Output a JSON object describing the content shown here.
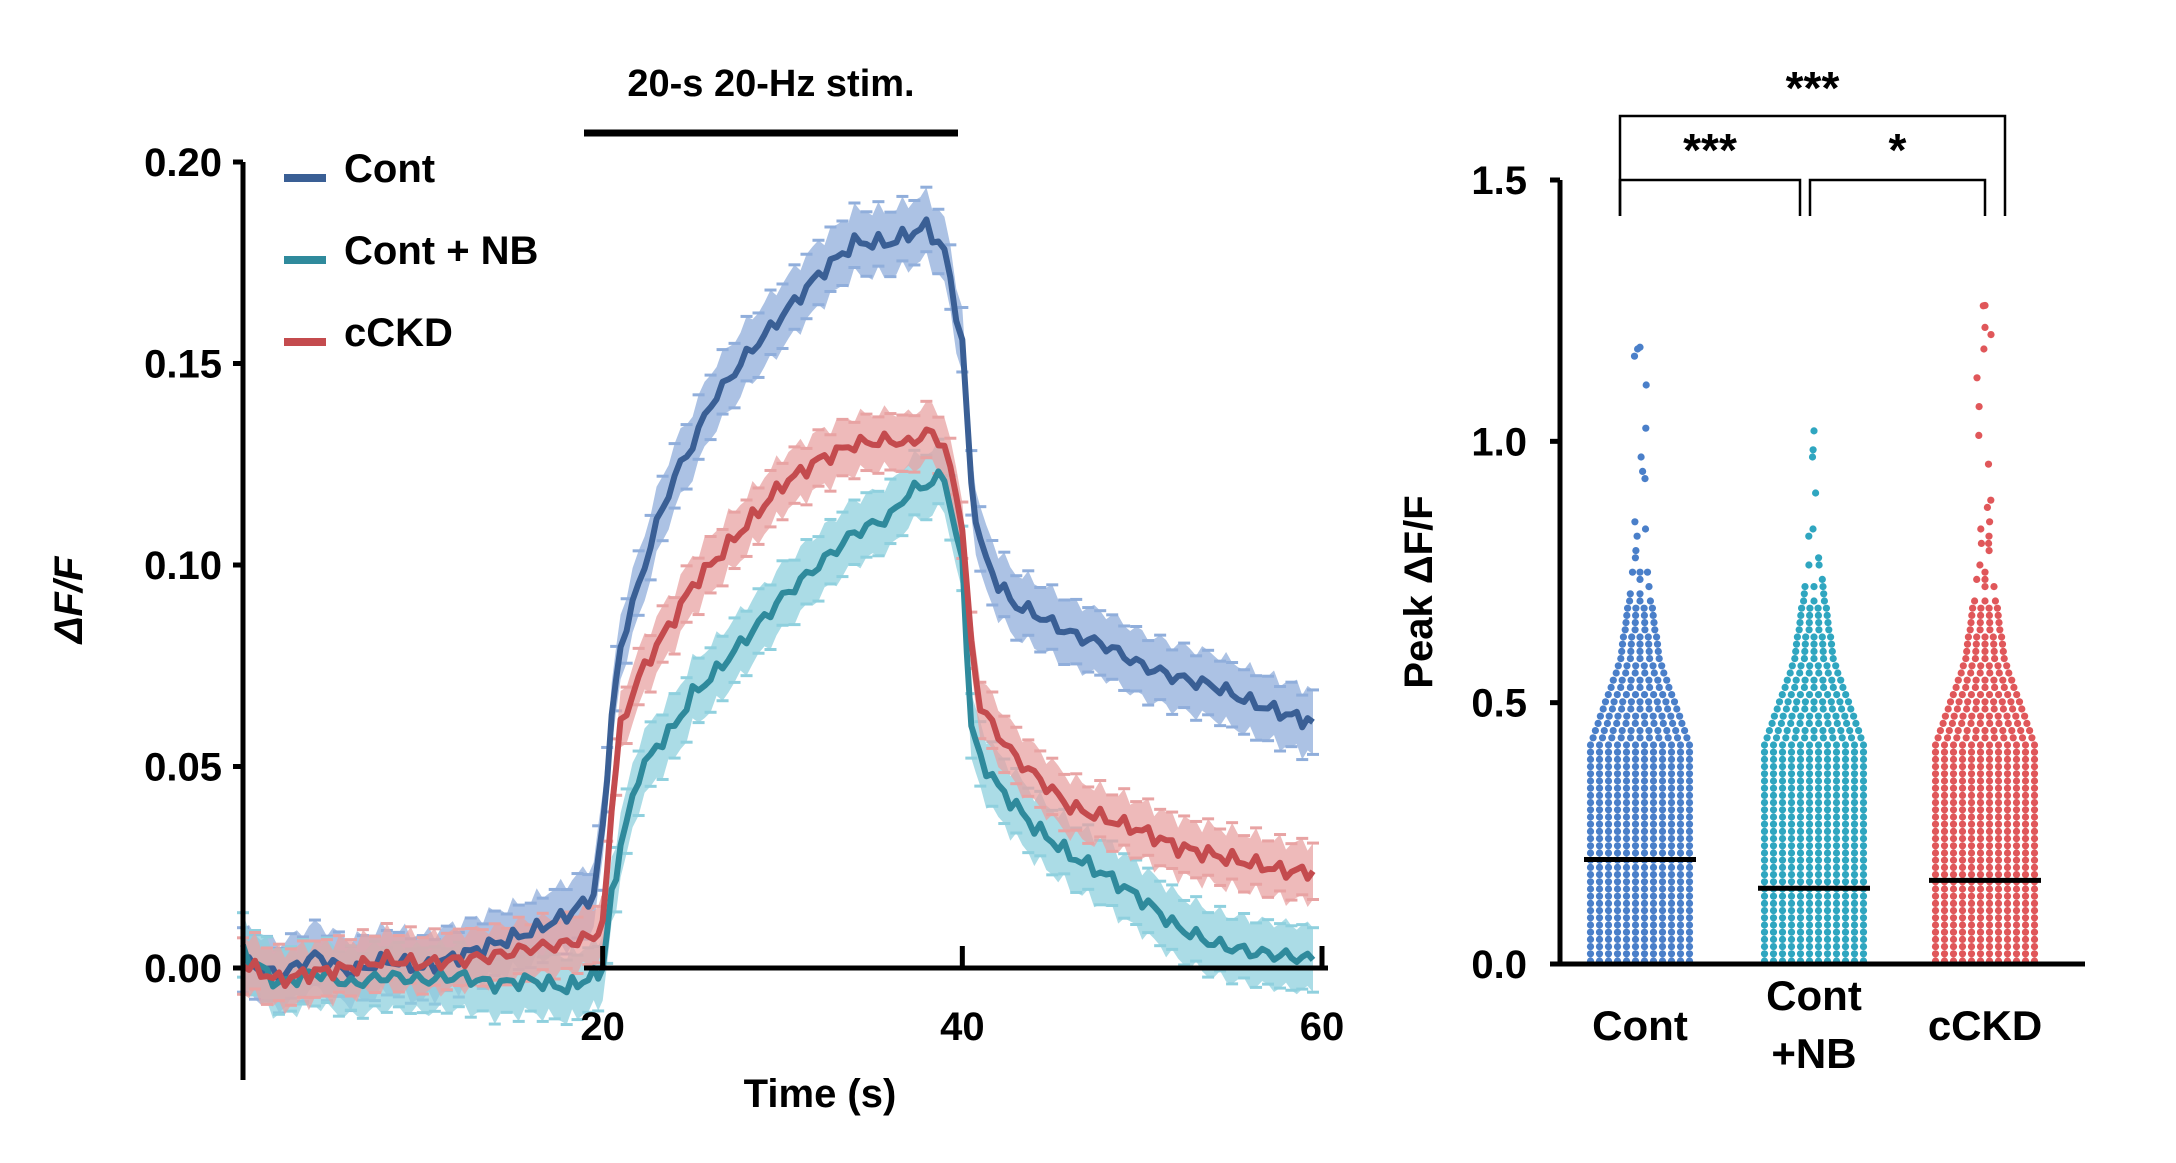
{
  "colors": {
    "cont": "#3a5f95",
    "cont_band": "#90aedb",
    "contnb": "#2f8a9c",
    "contnb_band": "#8fd0de",
    "cckd": "#c44b4e",
    "cckd_band": "#e8a3a3",
    "cont_dots": "#4a7fc9",
    "contnb_dots": "#2fa6c0",
    "cckd_dots": "#e0575a"
  },
  "chart_data": [
    {
      "type": "line",
      "title": "",
      "stim_label": "20-s 20-Hz stim.",
      "stim_range": [
        20,
        40
      ],
      "xlabel": "Time (s)",
      "ylabel": "ΔF/F",
      "xlim": [
        0,
        60
      ],
      "ylim": [
        -0.018,
        0.2
      ],
      "xticks": [
        20,
        40,
        60
      ],
      "xtick_labels": [
        "20",
        "40",
        "60"
      ],
      "yticks": [
        0.0,
        0.05,
        0.1,
        0.15,
        0.2
      ],
      "ytick_labels": [
        "0.00",
        "0.05",
        "0.10",
        "0.15",
        "0.20"
      ],
      "legend_position": "top-left",
      "x": [
        0,
        2,
        4,
        6,
        8,
        10,
        12,
        14,
        16,
        18,
        19.5,
        20,
        20.5,
        21,
        22,
        23,
        24,
        25,
        26,
        28,
        30,
        32,
        34,
        36,
        37,
        38,
        39,
        40,
        40.5,
        41,
        42,
        43,
        44,
        46,
        48,
        50,
        52,
        54,
        56,
        58,
        59.5
      ],
      "series": [
        {
          "name": "Cont",
          "key": "cont",
          "values": [
            0.002,
            -0.002,
            0.003,
            -0.001,
            0.002,
            0.0,
            0.003,
            0.006,
            0.009,
            0.013,
            0.018,
            0.035,
            0.062,
            0.08,
            0.095,
            0.11,
            0.122,
            0.13,
            0.14,
            0.152,
            0.162,
            0.172,
            0.18,
            0.18,
            0.182,
            0.184,
            0.178,
            0.155,
            0.12,
            0.105,
            0.095,
            0.09,
            0.088,
            0.083,
            0.08,
            0.075,
            0.072,
            0.07,
            0.066,
            0.063,
            0.061
          ],
          "error": 0.008
        },
        {
          "name": "Cont + NB",
          "key": "contnb",
          "values": [
            0.004,
            -0.004,
            -0.001,
            -0.004,
            -0.002,
            -0.003,
            -0.002,
            -0.004,
            -0.003,
            -0.005,
            -0.002,
            0.0,
            0.018,
            0.03,
            0.048,
            0.055,
            0.06,
            0.068,
            0.072,
            0.082,
            0.092,
            0.1,
            0.108,
            0.112,
            0.118,
            0.12,
            0.122,
            0.1,
            0.06,
            0.052,
            0.045,
            0.04,
            0.035,
            0.028,
            0.023,
            0.017,
            0.01,
            0.006,
            0.004,
            0.003,
            0.002
          ],
          "error": 0.008
        },
        {
          "name": "cCKD",
          "key": "cckd",
          "values": [
            0.001,
            -0.003,
            -0.001,
            0.0,
            0.002,
            0.001,
            0.002,
            0.003,
            0.005,
            0.006,
            0.008,
            0.01,
            0.04,
            0.06,
            0.072,
            0.08,
            0.087,
            0.095,
            0.1,
            0.11,
            0.12,
            0.126,
            0.13,
            0.131,
            0.13,
            0.133,
            0.13,
            0.11,
            0.08,
            0.065,
            0.058,
            0.052,
            0.048,
            0.04,
            0.037,
            0.034,
            0.03,
            0.028,
            0.026,
            0.024,
            0.024
          ],
          "error": 0.007
        }
      ]
    },
    {
      "type": "scatter",
      "title": "",
      "xlabel": "",
      "ylabel": "Peak ΔF/F",
      "ylim": [
        0.0,
        1.5
      ],
      "yticks": [
        0.0,
        0.5,
        1.0,
        1.5
      ],
      "ytick_labels": [
        "0.0",
        "0.5",
        "1.0",
        "1.5"
      ],
      "categories": [
        {
          "name": "Cont",
          "label_lines": [
            "Cont"
          ],
          "median": 0.2,
          "max": 1.18,
          "key": "cont_dots"
        },
        {
          "name": "Cont +NB",
          "label_lines": [
            "Cont",
            "+NB"
          ],
          "median": 0.145,
          "max": 1.02,
          "key": "contnb_dots"
        },
        {
          "name": "cCKD",
          "label_lines": [
            "cCKD"
          ],
          "median": 0.16,
          "max": 1.26,
          "key": "cckd_dots"
        }
      ],
      "significance": [
        {
          "pair": [
            "Cont",
            "Cont +NB"
          ],
          "label": "***"
        },
        {
          "pair": [
            "Cont +NB",
            "cCKD"
          ],
          "label": "*"
        },
        {
          "pair": [
            "Cont",
            "cCKD"
          ],
          "label": "***"
        }
      ]
    }
  ]
}
